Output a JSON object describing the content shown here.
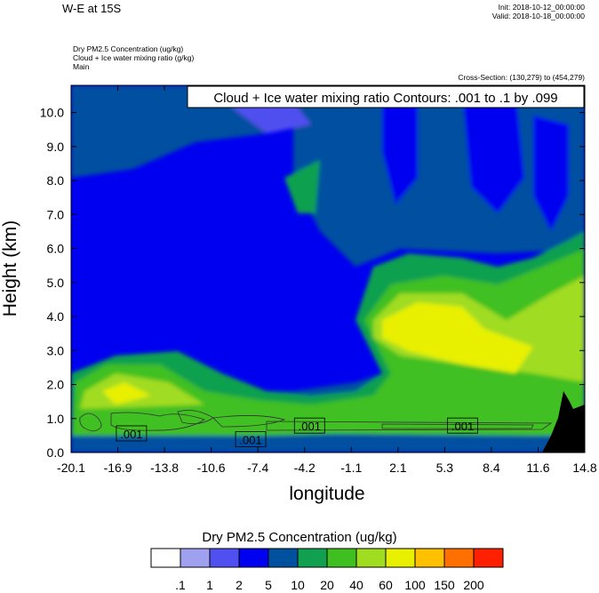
{
  "header": {
    "title": "W-E at 15S",
    "init": "Init: 2018-10-12_00:00:00",
    "valid": "Valid: 2018-10-18_00:00:00",
    "var1": "Dry PM2.5 Concentration   (ug/kg)",
    "var2": "Cloud + Ice water mixing ratio   (g/kg)",
    "var3": "Main",
    "cross_section": "Cross-Section: (130,279) to (454,279)"
  },
  "chart_data": {
    "type": "heatmap",
    "xlabel": "longitude",
    "ylabel": "Height (km)",
    "xticks": [
      "-20.1",
      "-16.9",
      "-13.8",
      "-10.6",
      "-7.4",
      "-4.2",
      "-1.1",
      "2.1",
      "5.3",
      "8.4",
      "11.6",
      "14.8"
    ],
    "xlim": [
      -20.1,
      14.8
    ],
    "ylim": [
      0,
      10.8
    ],
    "yticks": [
      0,
      1,
      2,
      3,
      4,
      5,
      6,
      7,
      8,
      9,
      10
    ],
    "ytick_labels": [
      "0.0",
      "1.0",
      "2.0",
      "3.0",
      "4.0",
      "5.0",
      "6.0",
      "7.0",
      "8.0",
      "9.0",
      "10.0"
    ],
    "contour_box": "Cloud + Ice water mixing ratio Contours: .001 to .1 by .099",
    "contour_labels": [
      {
        "text": ".001",
        "lon": -16.0,
        "h": 0.55
      },
      {
        "text": ".001",
        "lon": -7.9,
        "h": 0.38
      },
      {
        "text": ".001",
        "lon": -3.9,
        "h": 0.78
      },
      {
        "text": ".001",
        "lon": 6.5,
        "h": 0.78
      }
    ],
    "colorbar_title": "Dry PM2.5 Concentration  (ug/kg)",
    "colorbar_levels": [
      ".1",
      "1",
      "2",
      "5",
      "10",
      "20",
      "40",
      "60",
      "100",
      "150",
      "200"
    ],
    "colorbar_colors": [
      "#ffffff",
      "#a0a0f0",
      "#5050f0",
      "#0000f0",
      "#0050a0",
      "#10a050",
      "#40c020",
      "#a0dc20",
      "#e8f000",
      "#ffc000",
      "#ff7000",
      "#ff2000"
    ]
  }
}
